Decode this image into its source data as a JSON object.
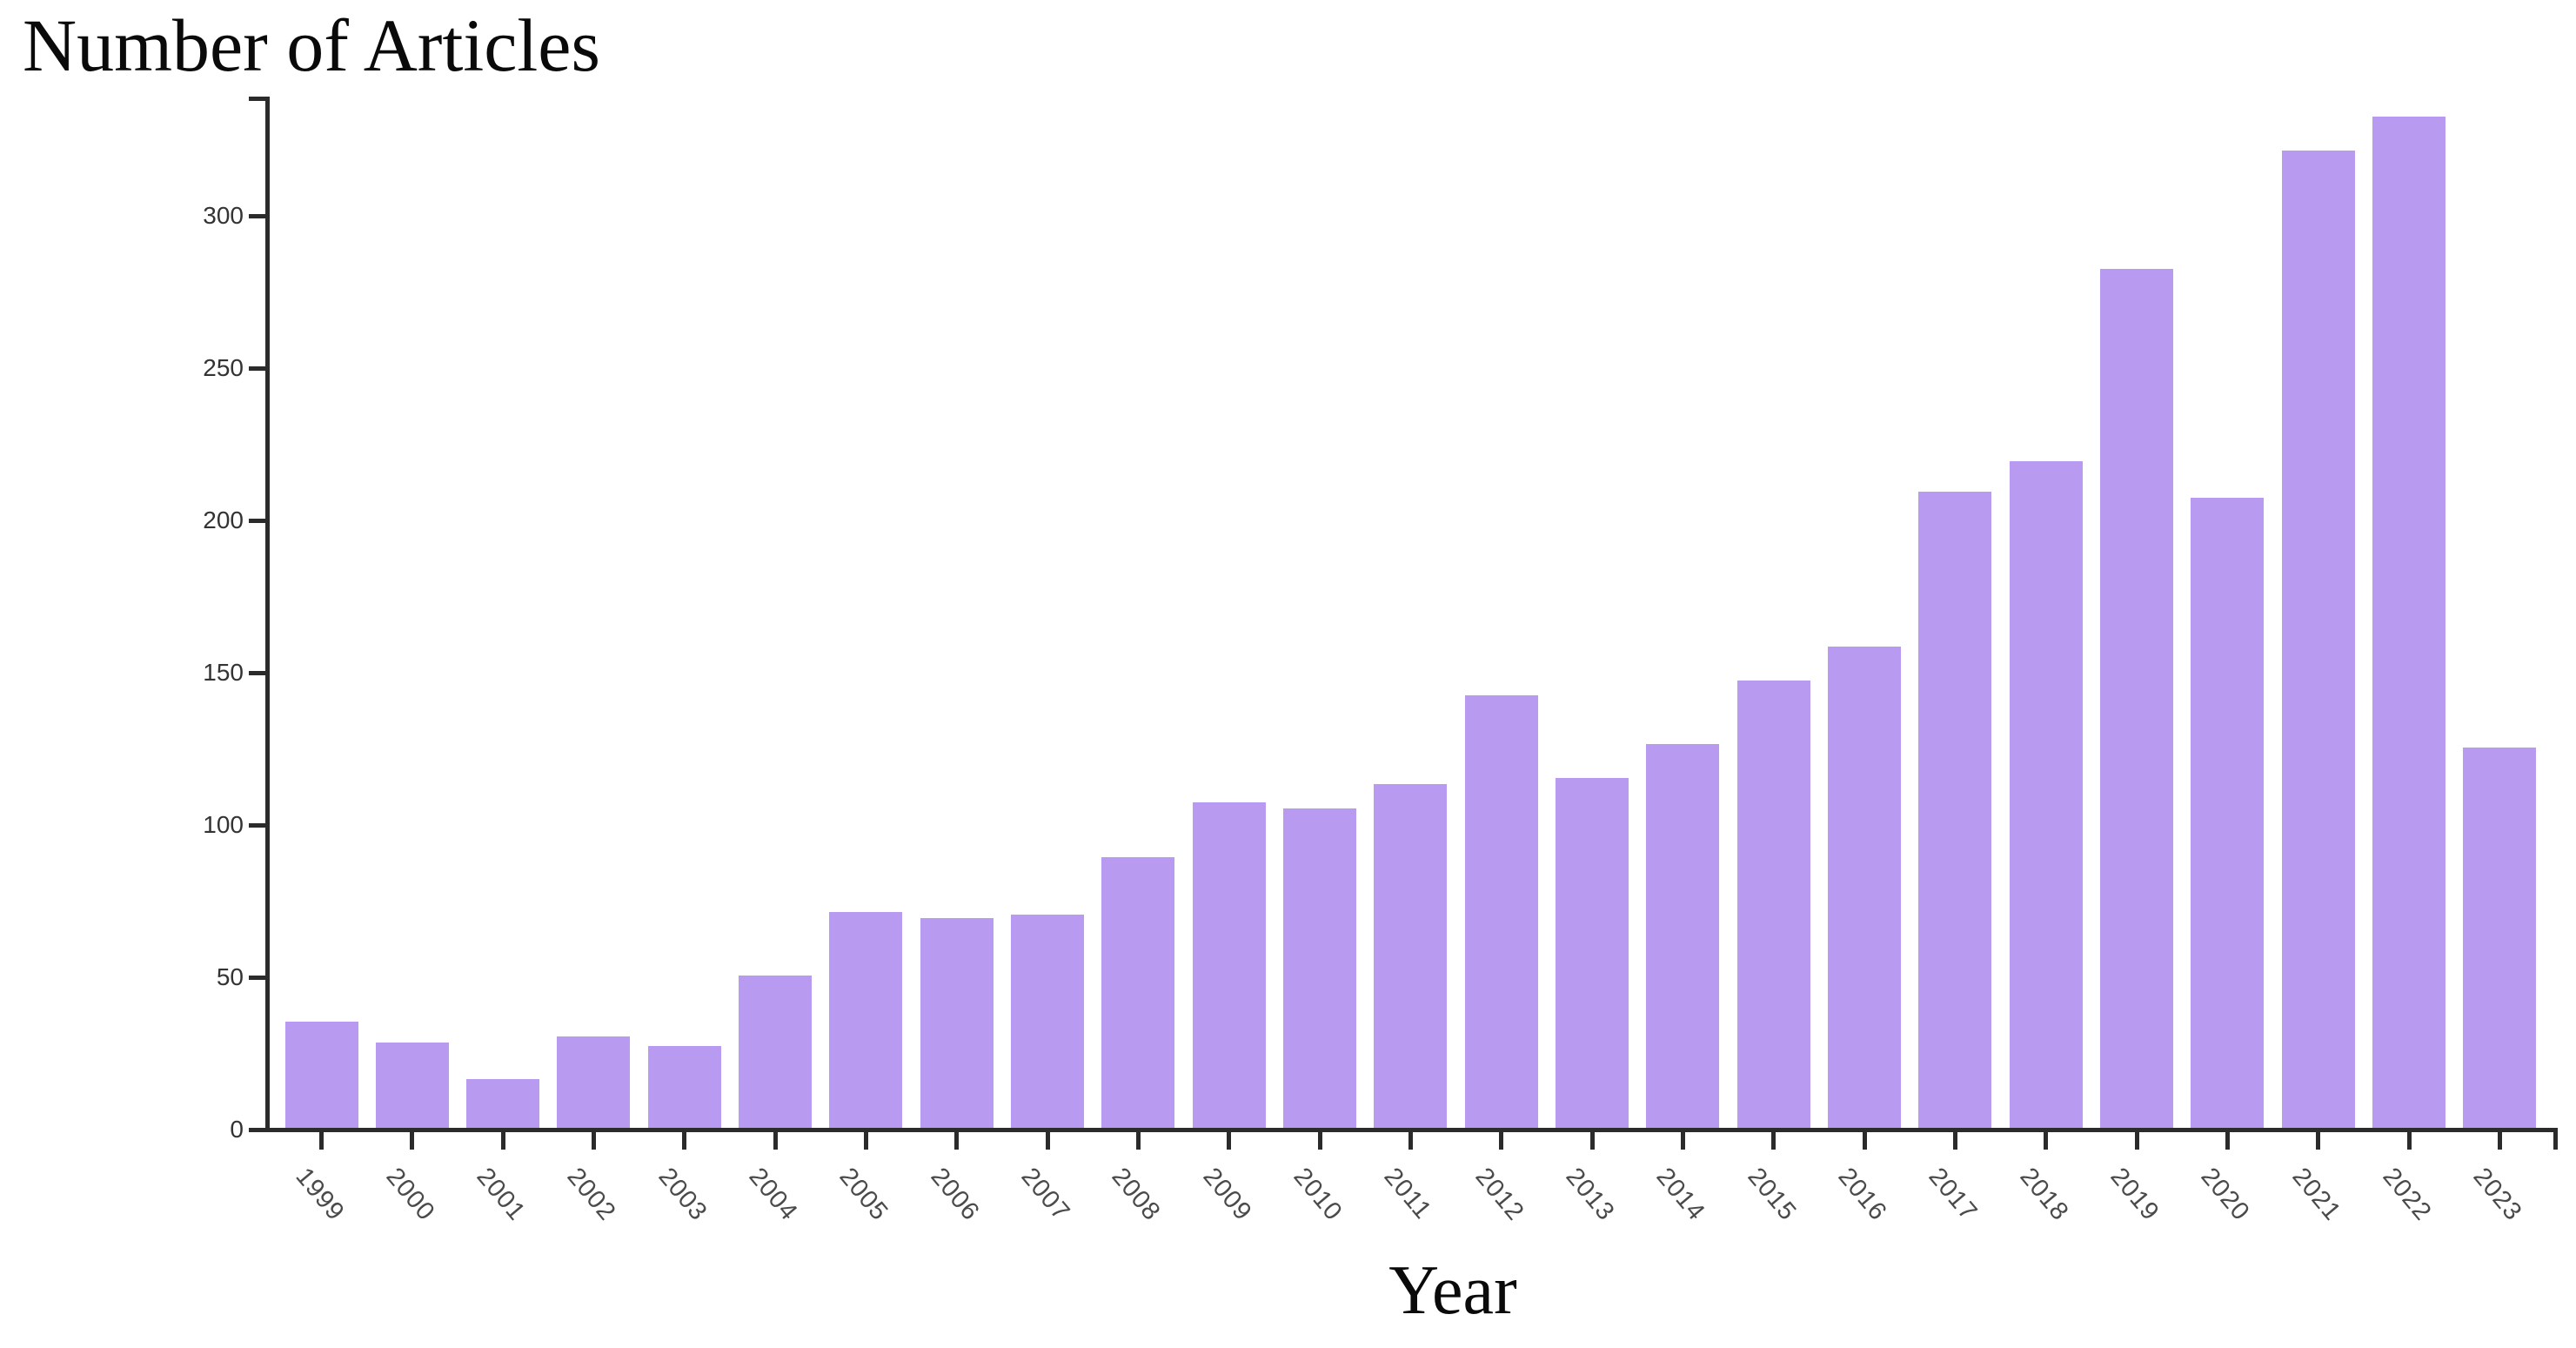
{
  "page": {
    "background_color": "#ffffff"
  },
  "chart_data": {
    "type": "bar",
    "title": "Number of Articles",
    "xlabel": "Year",
    "ylabel": "",
    "categories": [
      "1999",
      "2000",
      "2001",
      "2002",
      "2003",
      "2004",
      "2005",
      "2006",
      "2007",
      "2008",
      "2009",
      "2010",
      "2011",
      "2012",
      "2013",
      "2014",
      "2015",
      "2016",
      "2017",
      "2018",
      "2019",
      "2020",
      "2021",
      "2022",
      "2023"
    ],
    "values": [
      35,
      28,
      16,
      30,
      27,
      50,
      71,
      69,
      70,
      89,
      107,
      105,
      113,
      142,
      115,
      126,
      147,
      158,
      209,
      219,
      282,
      207,
      321,
      332,
      125
    ],
    "yticks": [
      0,
      50,
      100,
      150,
      200,
      250,
      300
    ],
    "ylim": [
      0,
      340
    ],
    "grid": false,
    "legend_position": "none",
    "bar_color": "#b89af0",
    "axis_color": "#2b2b2b",
    "ytick_label_color": "#333333",
    "xtick_label_color": "#4a4a4a",
    "title_color": "#0a0a0a"
  }
}
